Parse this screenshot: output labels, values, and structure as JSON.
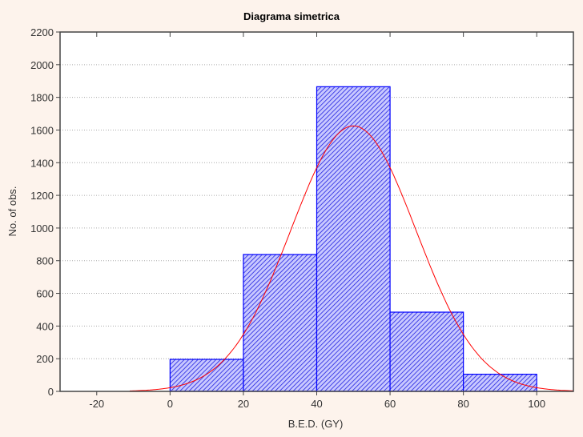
{
  "chart_data": {
    "type": "bar",
    "title": "Diagrama simetrica",
    "xlabel": "B.E.D. (GY)",
    "ylabel": "No. of obs.",
    "xlim": [
      -30,
      110
    ],
    "ylim": [
      0,
      2200
    ],
    "xticks": [
      -20,
      0,
      20,
      40,
      60,
      80,
      100
    ],
    "yticks": [
      0,
      200,
      400,
      600,
      800,
      1000,
      1200,
      1400,
      1600,
      1800,
      2000,
      2200
    ],
    "grid": true,
    "bins": [
      [
        0,
        20
      ],
      [
        20,
        40
      ],
      [
        40,
        60
      ],
      [
        60,
        80
      ],
      [
        80,
        100
      ]
    ],
    "values": [
      196,
      838,
      1865,
      485,
      105
    ],
    "fit": {
      "type": "normal",
      "mean": 50,
      "sd": 17.1,
      "peak": 1625,
      "color": "#ff0000"
    },
    "bar_color": "#0000ff",
    "background": "#fdf3ec"
  }
}
